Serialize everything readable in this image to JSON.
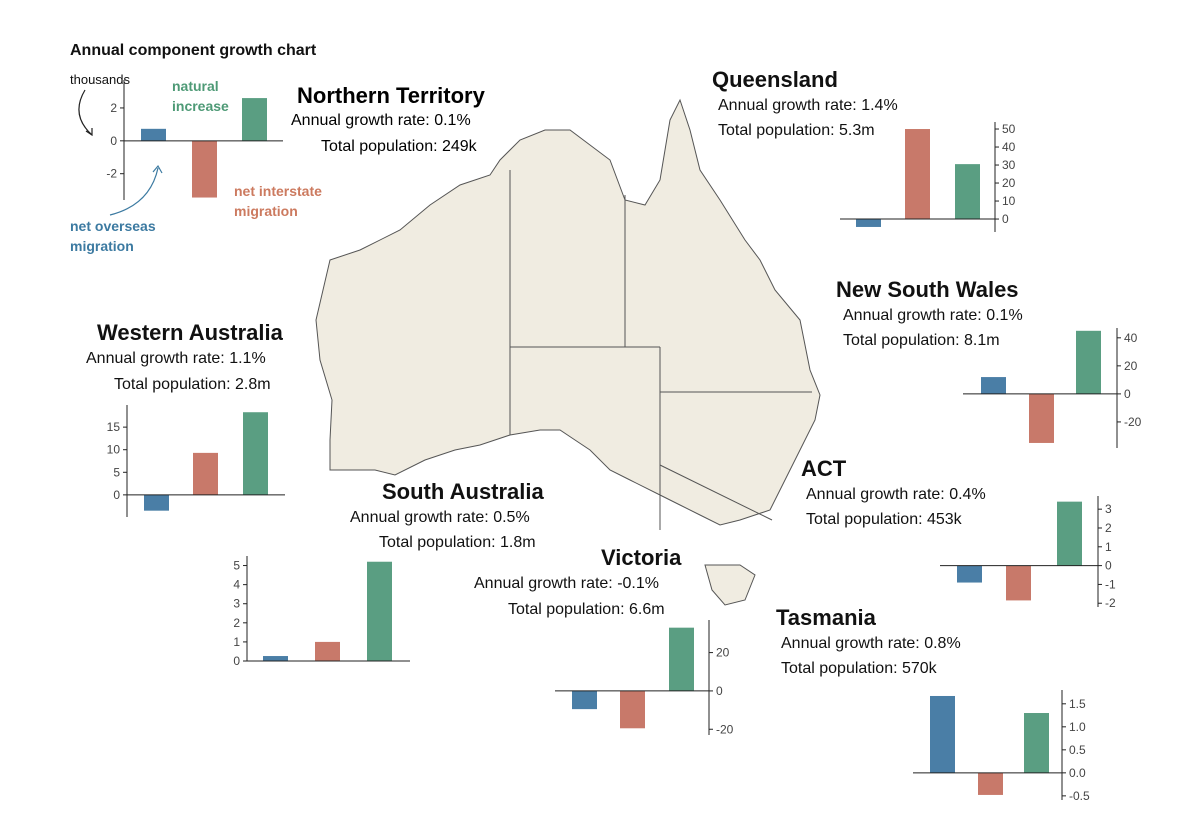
{
  "northern_territory": {
    "title": "Northern Territory",
    "growth": "Annual growth rate:  0.1%",
    "population": "Total population: 249k"
  },
  "chart_data": [
    {
      "type": "bar",
      "title": "Annual component growth chart",
      "y_label": "thousands",
      "categories": [
        "net overseas migration",
        "net interstate migration",
        "natural increase"
      ],
      "values": [
        0.73,
        -3.45,
        2.6
      ],
      "colors": [
        "#4a7ea6",
        "#c8796a",
        "#5a9e82"
      ],
      "label_colors": [
        "#3c7aa1",
        "#cc7a5f",
        "#4e9a76"
      ],
      "ylim": [
        -3.6,
        3.7
      ],
      "yticks": [
        2,
        0,
        -2
      ]
    },
    {
      "type": "bar",
      "title": "Queensland",
      "annotations": [
        "Annual growth rate:  1.4%",
        "Total population: 5.3m"
      ],
      "categories": [
        null,
        null,
        null
      ],
      "values": [
        -4.4,
        50,
        30.5
      ],
      "colors": [
        "#4a7ea6",
        "#c8796a",
        "#5a9e82"
      ],
      "ylim": [
        -7.2,
        53.9
      ],
      "yticks": [
        50,
        40,
        30,
        20,
        10,
        0
      ]
    },
    {
      "type": "bar",
      "title": "New South Wales",
      "annotations": [
        "Annual growth rate:  0.1%",
        "Total population: 8.1m"
      ],
      "categories": [
        null,
        null,
        null
      ],
      "values": [
        12,
        -35,
        45
      ],
      "colors": [
        "#4a7ea6",
        "#c8796a",
        "#5a9e82"
      ],
      "ylim": [
        -38.6,
        47
      ],
      "yticks": [
        40,
        20,
        0,
        -20
      ]
    },
    {
      "type": "bar",
      "title": "Western Australia",
      "annotations": [
        "Annual growth rate:  1.1%",
        "Total population: 2.8m"
      ],
      "categories": [
        null,
        null,
        null
      ],
      "values": [
        -3.5,
        9.3,
        18.3
      ],
      "colors": [
        "#4a7ea6",
        "#c8796a",
        "#5a9e82"
      ],
      "ylim": [
        -4.9,
        19.9
      ],
      "yticks": [
        15,
        10,
        5,
        0
      ]
    },
    {
      "type": "bar",
      "title": "South Australia",
      "annotations": [
        "Annual growth rate:  0.5%",
        "Total population: 1.8m"
      ],
      "categories": [
        null,
        null,
        null
      ],
      "values": [
        0.26,
        1.0,
        5.2
      ],
      "colors": [
        "#4a7ea6",
        "#c8796a",
        "#5a9e82"
      ],
      "ylim": [
        0,
        5.5
      ],
      "yticks": [
        5,
        4,
        3,
        2,
        1,
        0
      ]
    },
    {
      "type": "bar",
      "title": "Victoria",
      "annotations": [
        "Annual growth rate:  -0.1%",
        "Total population: 6.6m"
      ],
      "categories": [
        null,
        null,
        null
      ],
      "values": [
        -9.5,
        -19.5,
        33
      ],
      "colors": [
        "#4a7ea6",
        "#c8796a",
        "#5a9e82"
      ],
      "ylim": [
        -23,
        37
      ],
      "yticks": [
        20,
        0,
        -20
      ]
    },
    {
      "type": "bar",
      "title": "ACT",
      "annotations": [
        "Annual growth rate:  0.4%",
        "Total population: 453k"
      ],
      "categories": [
        null,
        null,
        null
      ],
      "values": [
        -0.9,
        -1.85,
        3.4
      ],
      "colors": [
        "#4a7ea6",
        "#c8796a",
        "#5a9e82"
      ],
      "ylim": [
        -2.2,
        3.7
      ],
      "yticks": [
        3,
        2,
        1,
        0,
        -1,
        -2
      ]
    },
    {
      "type": "bar",
      "title": "Tasmania",
      "annotations": [
        "Annual growth rate:  0.8%",
        "Total population: 570k"
      ],
      "categories": [
        null,
        null,
        null
      ],
      "values": [
        1.67,
        -0.48,
        1.3
      ],
      "colors": [
        "#4a7ea6",
        "#c8796a",
        "#5a9e82"
      ],
      "ylim": [
        -0.59,
        1.8
      ],
      "yticks": [
        1.5,
        {
          "value": 1,
          "label": "1.0"
        },
        0.5,
        {
          "value": 0,
          "label": "0.0"
        },
        -0.5
      ]
    }
  ]
}
